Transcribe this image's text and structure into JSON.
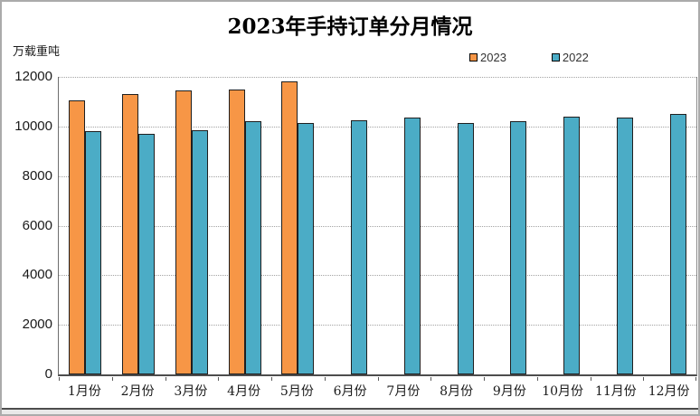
{
  "window": {
    "background": "#ffffff",
    "border_color": "#ababab",
    "footer_strip_color": "#e9e9e9"
  },
  "chart_data": {
    "type": "bar",
    "title": "2023年手持订单分月情况",
    "ylabel": "万载重吨",
    "xlabel": "",
    "categories": [
      "1月份",
      "2月份",
      "3月份",
      "4月份",
      "5月份",
      "6月份",
      "7月份",
      "8月份",
      "9月份",
      "10月份",
      "11月份",
      "12月份"
    ],
    "series": [
      {
        "name": "2023",
        "color": "#F79646",
        "values": [
          11050,
          11300,
          11450,
          11500,
          11800,
          null,
          null,
          null,
          null,
          null,
          null,
          null
        ]
      },
      {
        "name": "2022",
        "color": "#4BACC6",
        "values": [
          9800,
          9700,
          9850,
          10200,
          10150,
          10250,
          10350,
          10150,
          10200,
          10400,
          10350,
          10500
        ]
      }
    ],
    "ylim": [
      0,
      12000
    ],
    "yticks": [
      0,
      2000,
      4000,
      6000,
      8000,
      10000,
      12000
    ],
    "grid": "horizontal-dotted",
    "gridline_color": "#a3a3a3",
    "bar_border_color": "#1f1f1f",
    "legend_position": "top-right"
  }
}
